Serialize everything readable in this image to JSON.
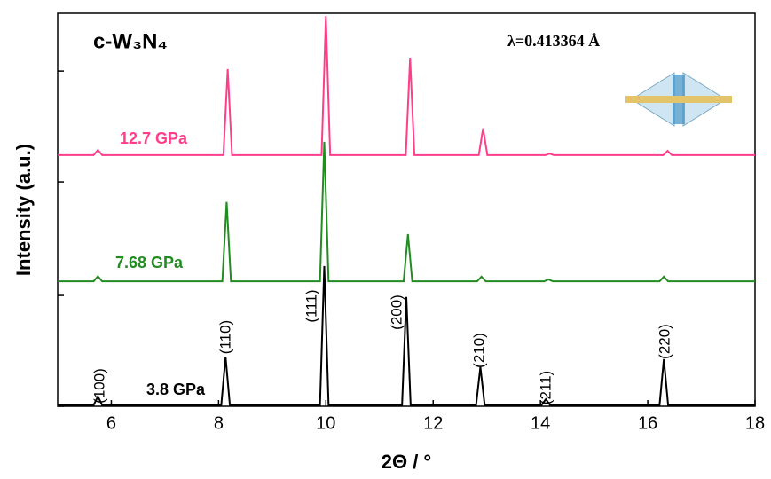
{
  "chart_data": {
    "type": "line",
    "title": "c-W₃N₄",
    "annotation_wavelength": "λ=0.413364 Å",
    "x_label": "2Θ / °",
    "y_label": "Intensity (a.u.)",
    "xlim": [
      5,
      18
    ],
    "xticks": [
      6,
      8,
      10,
      12,
      14,
      16,
      18
    ],
    "ylim": [
      0,
      100
    ],
    "yticks": [
      0,
      28.2,
      57.1,
      85.3
    ],
    "peak_labels": [
      "(100)",
      "(110)",
      "(111)",
      "(200)",
      "(210)",
      "(211)",
      "(220)"
    ],
    "series": [
      {
        "name": "3.8 GPa",
        "color": "#000000",
        "x": [
          5,
          5.67,
          5.75,
          5.83,
          8.05,
          8.13,
          8.21,
          9.89,
          9.97,
          10.05,
          11.42,
          11.5,
          11.58,
          12.8,
          12.88,
          12.96,
          14.02,
          14.1,
          14.18,
          16.22,
          16.3,
          16.38,
          18
        ],
        "values": [
          0.3,
          0.3,
          2.5,
          0.3,
          0.3,
          12.6,
          0.3,
          0.3,
          35.7,
          0.3,
          0.3,
          27.8,
          0.3,
          0.3,
          10,
          0.3,
          0.3,
          1.8,
          0.3,
          0.3,
          12,
          0.3,
          0.3
        ]
      },
      {
        "name": "7.68 GPa",
        "color": "#228b22",
        "x": [
          5,
          5.67,
          5.75,
          5.83,
          8.07,
          8.15,
          8.23,
          9.89,
          9.97,
          10.05,
          11.45,
          11.53,
          11.61,
          12.82,
          12.9,
          12.98,
          14.07,
          14.15,
          14.23,
          16.22,
          16.3,
          16.38,
          18
        ],
        "values": [
          31.8,
          31.8,
          33.1,
          31.8,
          31.8,
          52,
          31.8,
          31.8,
          67.3,
          31.8,
          31.8,
          43.8,
          31.8,
          31.8,
          33,
          31.8,
          31.8,
          32.3,
          31.8,
          31.8,
          33,
          31.8,
          31.8
        ]
      },
      {
        "name": "12.7 GPa",
        "color": "#ff3d8b",
        "x": [
          5,
          5.67,
          5.75,
          5.83,
          8.09,
          8.17,
          8.25,
          9.92,
          10.0,
          10.08,
          11.49,
          11.57,
          11.65,
          12.85,
          12.93,
          13.01,
          14.09,
          14.17,
          14.25,
          16.29,
          16.37,
          16.45,
          18
        ],
        "values": [
          63.9,
          63.9,
          65.2,
          63.9,
          63.9,
          85.8,
          63.9,
          63.9,
          99.3,
          63.9,
          63.9,
          88.7,
          63.9,
          63.9,
          70.7,
          63.9,
          63.9,
          64.3,
          63.9,
          63.9,
          65,
          63.9,
          63.9
        ]
      }
    ]
  }
}
